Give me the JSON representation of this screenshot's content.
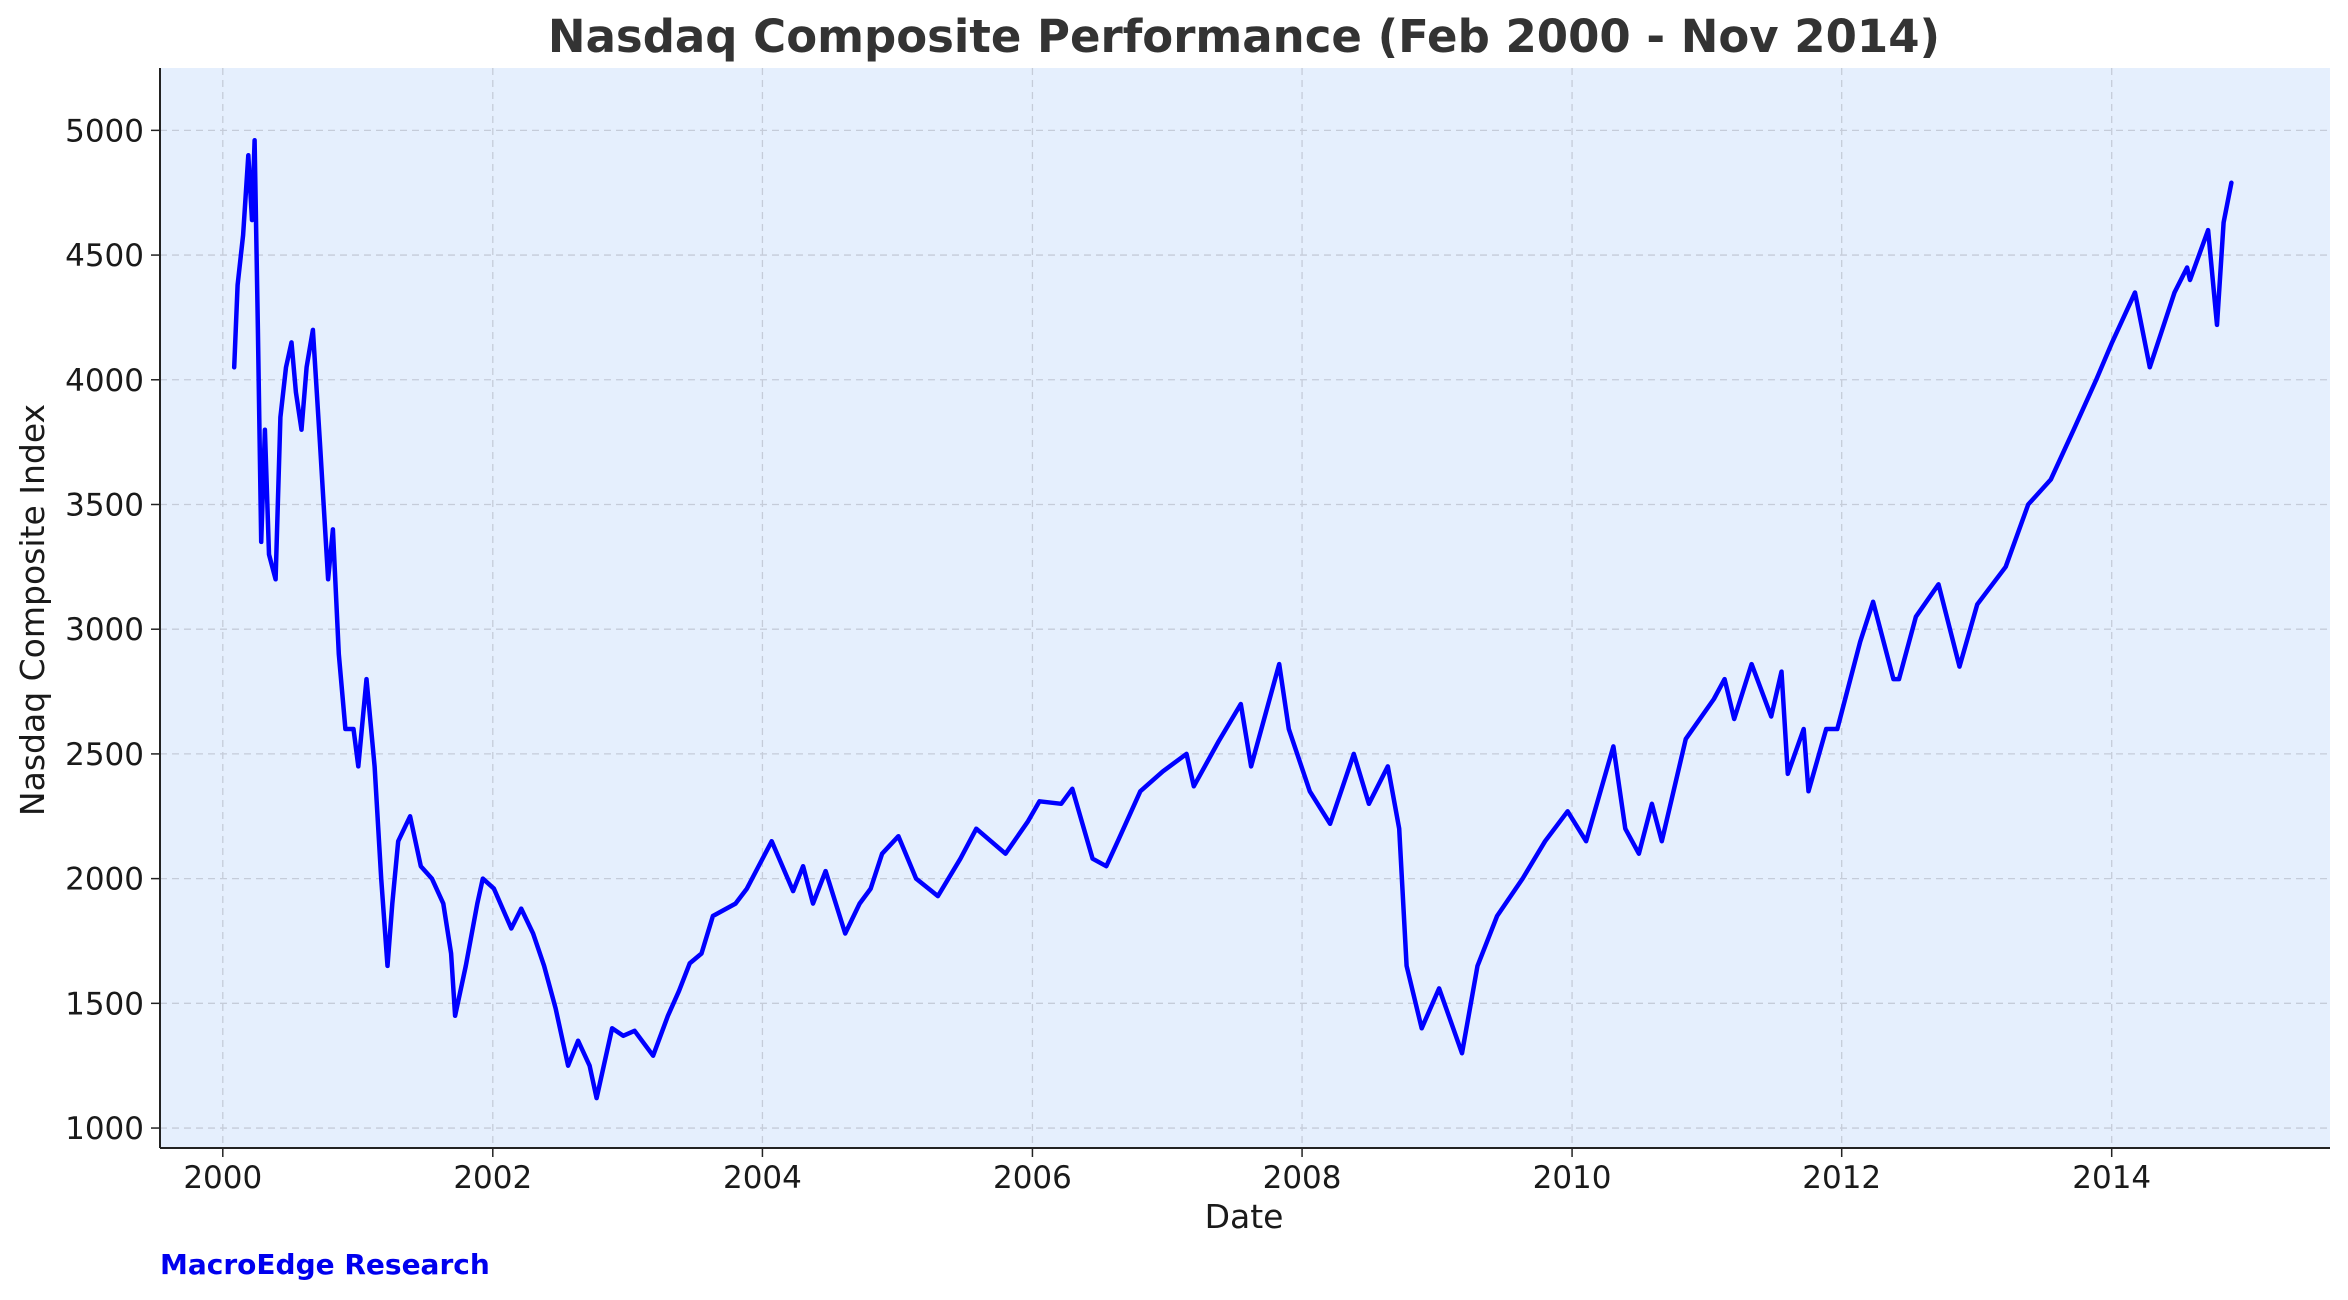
{
  "chart_data": {
    "type": "line",
    "title": "Nasdaq Composite Performance (Feb 2000 - Nov 2014)",
    "xlabel": "Date",
    "ylabel": "Nasdaq Composite Index",
    "xlim": [
      "1999-07-15",
      "2015-08-15"
    ],
    "ylim": [
      920,
      5250
    ],
    "x_ticks": [
      "2000",
      "2002",
      "2004",
      "2006",
      "2008",
      "2010",
      "2012",
      "2014"
    ],
    "y_ticks": [
      1000,
      1500,
      2000,
      2500,
      3000,
      3500,
      4000,
      4500,
      5000
    ],
    "grid": true,
    "legend": "none",
    "colors": {
      "line": "#0000ff",
      "plot_background": "#e5effd",
      "grid": "#c5ccd9",
      "title": "#333333"
    },
    "series": [
      {
        "x": [
          "2000-02-01",
          "2000-02-10",
          "2000-02-25",
          "2000-03-10",
          "2000-03-20",
          "2000-03-27",
          "2000-04-05",
          "2000-04-14",
          "2000-04-24",
          "2000-05-05",
          "2000-05-23",
          "2000-06-05",
          "2000-06-20",
          "2000-07-05",
          "2000-07-17",
          "2000-08-01",
          "2000-08-15",
          "2000-09-01",
          "2000-09-20",
          "2000-10-12",
          "2000-10-25",
          "2000-11-10",
          "2000-11-28",
          "2000-12-20",
          "2001-01-02",
          "2001-01-24",
          "2001-02-15",
          "2001-03-05",
          "2001-03-22",
          "2001-04-04",
          "2001-04-20",
          "2001-05-22",
          "2001-06-20",
          "2001-07-20",
          "2001-08-20",
          "2001-09-10",
          "2001-09-21",
          "2001-10-20",
          "2001-11-20",
          "2001-12-05",
          "2002-01-04",
          "2002-02-20",
          "2002-03-19",
          "2002-04-20",
          "2002-05-20",
          "2002-06-20",
          "2002-07-24",
          "2002-08-20",
          "2002-09-20",
          "2002-10-09",
          "2002-11-20",
          "2002-12-20",
          "2003-01-20",
          "2003-03-11",
          "2003-04-20",
          "2003-05-20",
          "2003-06-18",
          "2003-07-20",
          "2003-08-20",
          "2003-10-20",
          "2003-11-20",
          "2004-01-26",
          "2004-03-24",
          "2004-04-20",
          "2004-05-17",
          "2004-06-20",
          "2004-08-12",
          "2004-09-20",
          "2004-10-20",
          "2004-11-20",
          "2005-01-03",
          "2005-02-20",
          "2005-04-20",
          "2005-06-20",
          "2005-08-02",
          "2005-10-20",
          "2005-12-20",
          "2006-01-20",
          "2006-03-20",
          "2006-04-19",
          "2006-06-13",
          "2006-07-20",
          "2006-08-20",
          "2006-10-20",
          "2006-12-20",
          "2007-02-22",
          "2007-03-14",
          "2007-05-20",
          "2007-07-19",
          "2007-08-16",
          "2007-10-31",
          "2007-11-26",
          "2008-01-22",
          "2008-03-17",
          "2008-05-20",
          "2008-06-30",
          "2008-08-20",
          "2008-09-20",
          "2008-10-10",
          "2008-11-20",
          "2009-01-06",
          "2009-03-09",
          "2009-04-20",
          "2009-06-12",
          "2009-08-20",
          "2009-10-20",
          "2009-12-20",
          "2010-02-08",
          "2010-04-23",
          "2010-05-25",
          "2010-07-01",
          "2010-08-05",
          "2010-09-01",
          "2010-11-05",
          "2011-01-20",
          "2011-02-18",
          "2011-03-16",
          "2011-05-02",
          "2011-06-24",
          "2011-07-22",
          "2011-08-08",
          "2011-09-20",
          "2011-10-03",
          "2011-11-20",
          "2011-12-20",
          "2012-02-20",
          "2012-03-26",
          "2012-05-20",
          "2012-06-04",
          "2012-07-20",
          "2012-09-19",
          "2012-11-15",
          "2013-01-02",
          "2013-03-20",
          "2013-05-20",
          "2013-07-20",
          "2013-09-20",
          "2013-11-20",
          "2014-01-02",
          "2014-03-05",
          "2014-04-14",
          "2014-06-20",
          "2014-07-24",
          "2014-08-01",
          "2014-09-19",
          "2014-10-13",
          "2014-10-31",
          "2014-11-21"
        ],
        "y": [
          4050,
          4380,
          4580,
          4900,
          4640,
          4960,
          4200,
          3350,
          3800,
          3300,
          3200,
          3850,
          4050,
          4150,
          3950,
          3800,
          4050,
          4200,
          3750,
          3200,
          3400,
          2900,
          2600,
          2600,
          2450,
          2800,
          2450,
          2000,
          1650,
          1900,
          2150,
          2250,
          2050,
          2000,
          1900,
          1700,
          1450,
          1650,
          1900,
          2000,
          1960,
          1800,
          1880,
          1780,
          1650,
          1480,
          1250,
          1350,
          1250,
          1120,
          1400,
          1370,
          1390,
          1290,
          1450,
          1550,
          1660,
          1700,
          1850,
          1900,
          1960,
          2150,
          1950,
          2050,
          1900,
          2030,
          1780,
          1900,
          1960,
          2100,
          2170,
          2000,
          1930,
          2080,
          2200,
          2100,
          2230,
          2310,
          2300,
          2360,
          2080,
          2050,
          2150,
          2350,
          2430,
          2500,
          2370,
          2550,
          2700,
          2450,
          2860,
          2600,
          2350,
          2220,
          2500,
          2300,
          2450,
          2200,
          1650,
          1400,
          1560,
          1300,
          1650,
          1850,
          2000,
          2150,
          2270,
          2150,
          2530,
          2200,
          2100,
          2300,
          2150,
          2560,
          2720,
          2800,
          2640,
          2860,
          2650,
          2830,
          2420,
          2600,
          2350,
          2600,
          2600,
          2950,
          3110,
          2800,
          2800,
          3050,
          3180,
          2850,
          3100,
          3250,
          3500,
          3600,
          3800,
          4000,
          4150,
          4350,
          4050,
          4350,
          4450,
          4400,
          4600,
          4220,
          4630,
          4790
        ]
      }
    ],
    "source": "MacroEdge Research"
  }
}
